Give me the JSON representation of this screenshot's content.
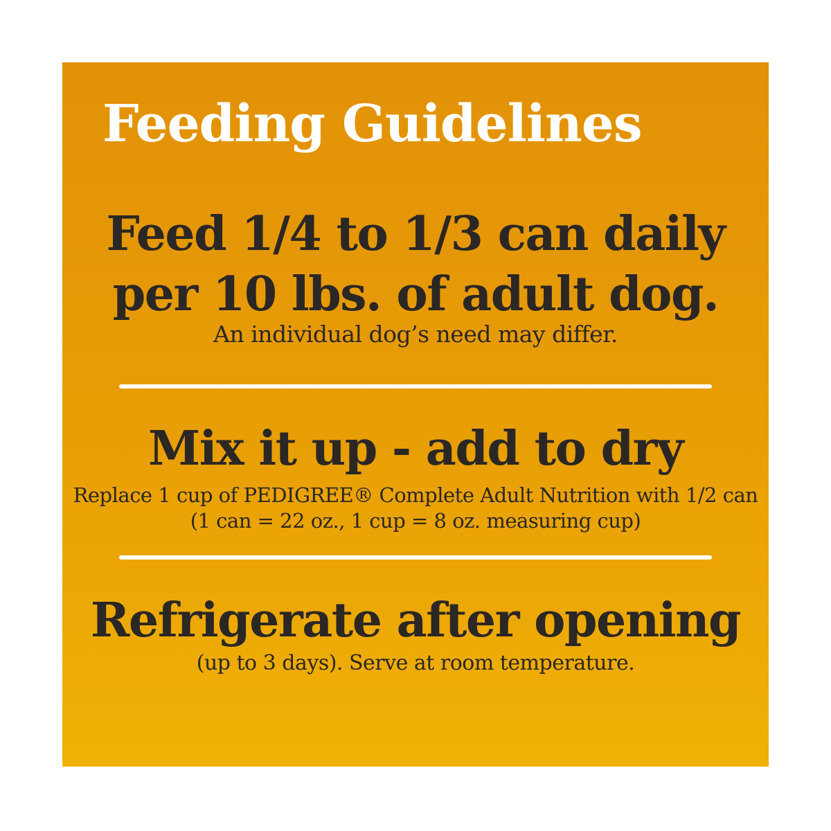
{
  "panel": {
    "title": "Feeding Guidelines",
    "colors": {
      "background_top": "#E29107",
      "background_bottom": "#F0B105",
      "title_text": "#FFFFFF",
      "body_text": "#2B2724",
      "divider": "#FFFFFF"
    }
  },
  "sections": [
    {
      "heading_line1": "Feed 1/4 to 1/3 can daily",
      "heading_line2": "per 10 lbs. of adult dog.",
      "note": "An individual dog’s need may differ."
    },
    {
      "heading": "Mix it up - add to dry",
      "note_line1": "Replace 1 cup of PEDIGREE® Complete Adult Nutrition with 1/2 can",
      "note_line2": "(1 can = 22 oz., 1 cup = 8 oz. measuring cup)"
    },
    {
      "heading": "Refrigerate after opening",
      "note": "(up to 3 days). Serve at room temperature."
    }
  ]
}
